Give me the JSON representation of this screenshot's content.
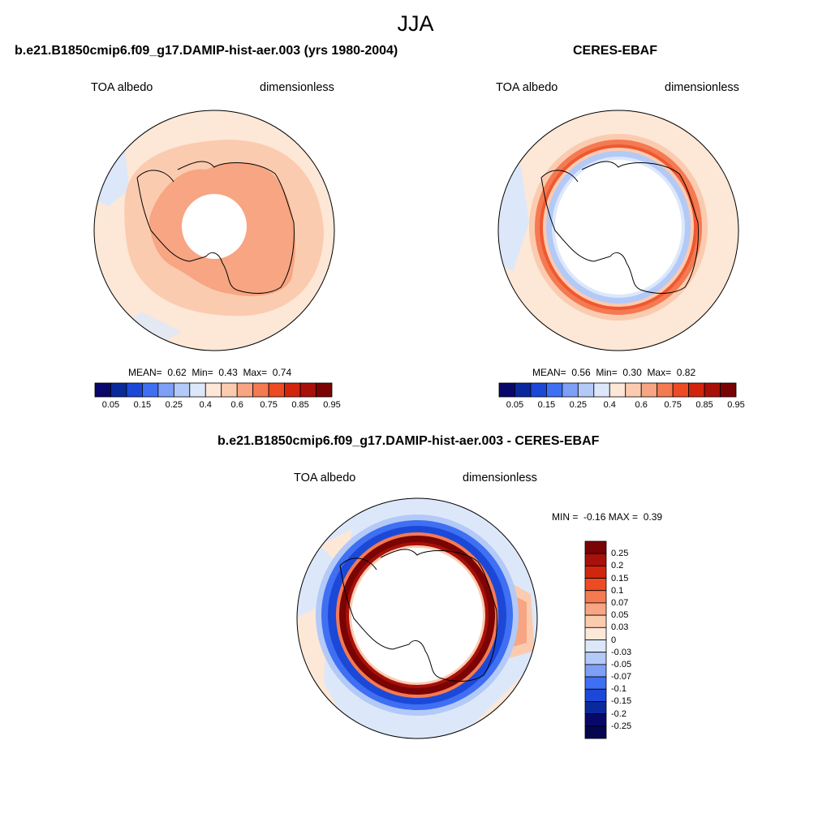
{
  "figure": {
    "title": "JJA"
  },
  "panels": [
    {
      "title": "b.e21.B1850cmip6.f09_g17.DAMIP-hist-aer.003 (yrs 1980-2004)",
      "left_label": "TOA albedo",
      "right_label": "dimensionless",
      "stats": {
        "mean_label": "MEAN=",
        "mean": "0.62",
        "min_label": "Min=",
        "min": "0.43",
        "max_label": "Max=",
        "max": "0.74"
      }
    },
    {
      "title": "CERES-EBAF",
      "left_label": "TOA albedo",
      "right_label": "dimensionless",
      "stats": {
        "mean_label": "MEAN=",
        "mean": "0.56",
        "min_label": "Min=",
        "min": "0.30",
        "max_label": "Max=",
        "max": "0.82"
      }
    },
    {
      "title": "b.e21.B1850cmip6.f09_g17.DAMIP-hist-aer.003 - CERES-EBAF",
      "left_label": "TOA albedo",
      "right_label": "dimensionless",
      "stats": {
        "min_label": "MIN =",
        "min": "-0.16",
        "max_label": "MAX =",
        "max": "0.39"
      }
    }
  ],
  "colorbar_abs": {
    "tick_labels": [
      "0.05",
      "0.15",
      "0.25",
      "0.4",
      "0.6",
      "0.75",
      "0.85",
      "0.95"
    ],
    "colors": [
      "#08086b",
      "#0a2a9c",
      "#1c48d8",
      "#3f6ff2",
      "#7d9ff5",
      "#b3c9f7",
      "#dce8fa",
      "#fde7d6",
      "#fbcbb0",
      "#f7a582",
      "#f47a52",
      "#ee4a24",
      "#d2250e",
      "#a8100a",
      "#7a0404"
    ]
  },
  "colorbar_diff": {
    "tick_labels": [
      "0.25",
      "0.2",
      "0.15",
      "0.1",
      "0.07",
      "0.05",
      "0.03",
      "0",
      "-0.03",
      "-0.05",
      "-0.07",
      "-0.1",
      "-0.15",
      "-0.2",
      "-0.25"
    ],
    "colors": [
      "#7a0404",
      "#a8100a",
      "#d2250e",
      "#ee4a24",
      "#f47a52",
      "#f7a582",
      "#fbcbb0",
      "#fde7d6",
      "#dce8fa",
      "#b3c9f7",
      "#7d9ff5",
      "#3f6ff2",
      "#1c48d8",
      "#0a2a9c",
      "#08086b",
      "#050550"
    ]
  },
  "colors": {
    "very_light_red": "#fde7d6",
    "light_red": "#fbcbb0",
    "mid_red": "#f7a582",
    "red": "#ee4a24",
    "dark_red": "#a8100a",
    "very_light_blue": "#dce8fa",
    "light_blue": "#b3c9f7",
    "blue": "#1c48d8"
  }
}
